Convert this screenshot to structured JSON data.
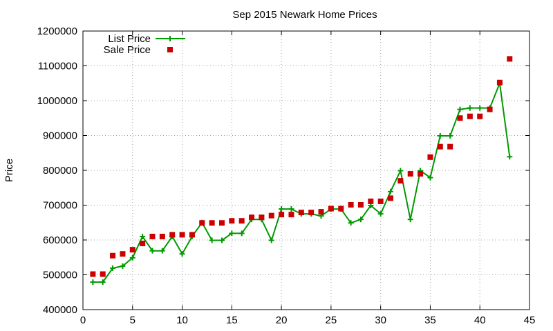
{
  "chart_data": {
    "type": "line",
    "title": "Sep 2015 Newark Home Prices",
    "xlabel": "",
    "ylabel": "Price",
    "xlim": [
      0,
      45
    ],
    "ylim": [
      400000,
      1200000
    ],
    "xticks": [
      0,
      5,
      10,
      15,
      20,
      25,
      30,
      35,
      40,
      45
    ],
    "yticks": [
      400000,
      500000,
      600000,
      700000,
      800000,
      900000,
      1000000,
      1100000,
      1200000
    ],
    "grid": true,
    "legend_position": "top-left",
    "series": [
      {
        "name": "List Price",
        "style": "line-points",
        "marker": "plus",
        "color": "#009900",
        "x": [
          1,
          2,
          3,
          4,
          5,
          6,
          7,
          8,
          9,
          10,
          11,
          12,
          13,
          14,
          15,
          16,
          17,
          18,
          19,
          20,
          21,
          22,
          23,
          24,
          25,
          26,
          27,
          28,
          29,
          30,
          31,
          32,
          33,
          34,
          35,
          36,
          37,
          38,
          39,
          40,
          41,
          42,
          43
        ],
        "y": [
          479000,
          479000,
          519000,
          525000,
          549000,
          610000,
          569000,
          569000,
          610000,
          560000,
          610000,
          650000,
          599000,
          599000,
          619000,
          619000,
          659000,
          659000,
          599000,
          689000,
          689000,
          675000,
          675000,
          669000,
          689000,
          689000,
          649000,
          659000,
          699000,
          675000,
          739000,
          799000,
          659000,
          799000,
          779000,
          899000,
          899000,
          975000,
          979000,
          979000,
          979000,
          1050000,
          839000
        ]
      },
      {
        "name": "Sale Price",
        "style": "points",
        "marker": "square",
        "color": "#cc0000",
        "x": [
          1,
          2,
          3,
          4,
          5,
          6,
          7,
          8,
          9,
          10,
          11,
          12,
          13,
          14,
          15,
          16,
          17,
          18,
          19,
          20,
          21,
          22,
          23,
          24,
          25,
          26,
          27,
          28,
          29,
          30,
          31,
          32,
          33,
          34,
          35,
          36,
          37,
          38,
          39,
          40,
          41,
          42,
          43
        ],
        "y": [
          502000,
          502000,
          555000,
          560000,
          572000,
          590000,
          610000,
          610000,
          615000,
          615000,
          615000,
          649000,
          649000,
          649000,
          655000,
          655000,
          665000,
          665000,
          670000,
          673000,
          673000,
          679000,
          679000,
          681000,
          690000,
          690000,
          701000,
          701000,
          711000,
          711000,
          720000,
          770000,
          790000,
          790000,
          838000,
          868000,
          868000,
          950000,
          955000,
          955000,
          975000,
          1052000,
          1120000
        ]
      }
    ]
  }
}
